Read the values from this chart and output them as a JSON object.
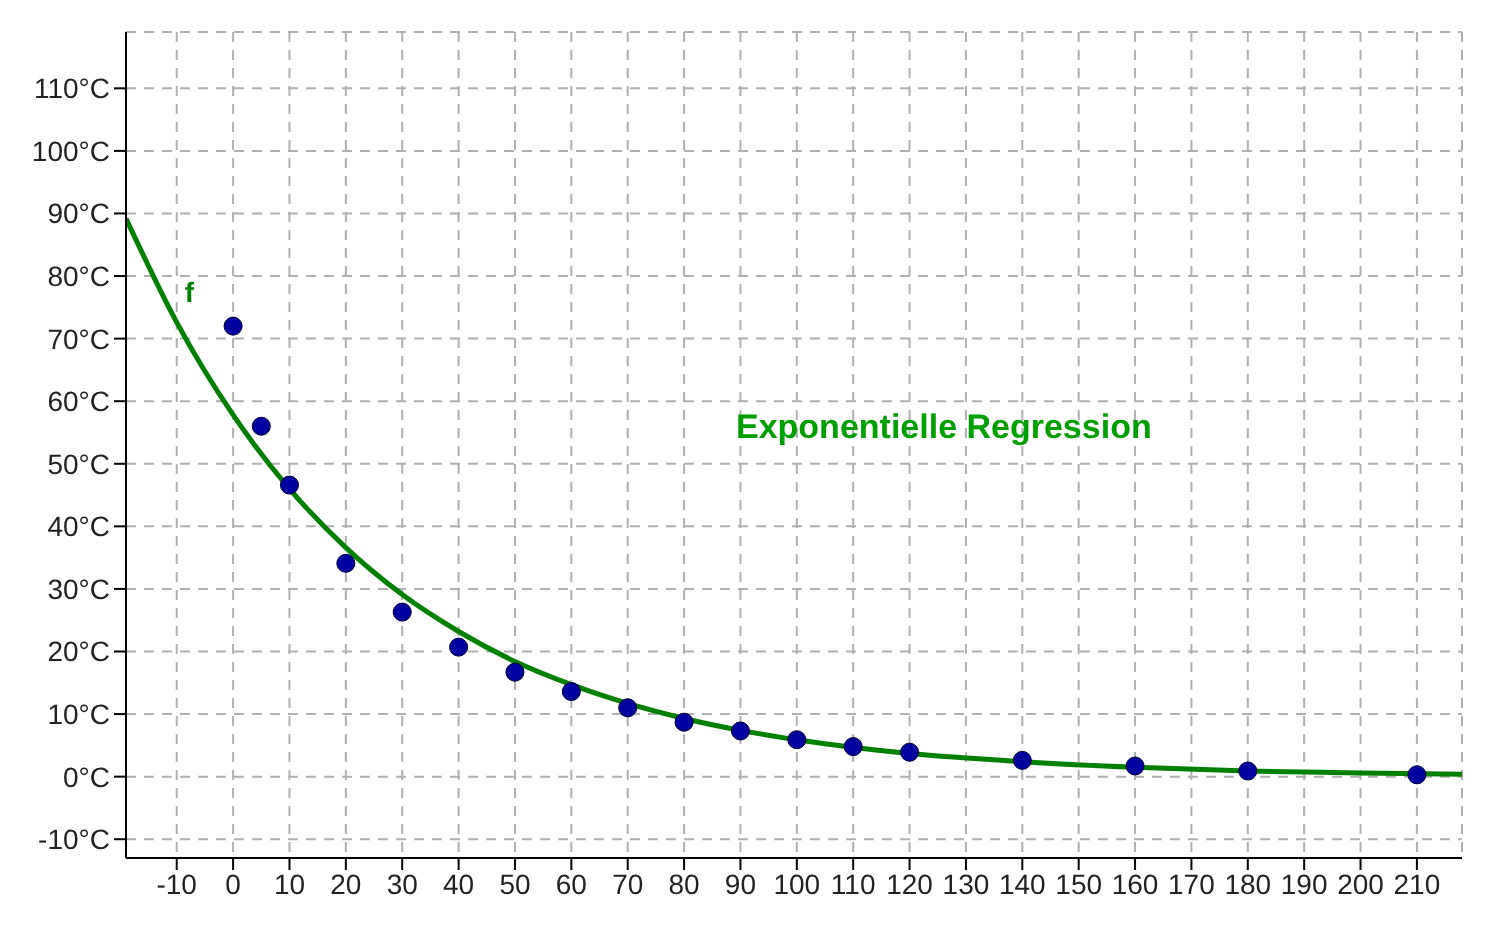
{
  "chart_data": {
    "type": "scatter",
    "annotations": [
      "Exponentielle Regression"
    ],
    "xlim": [
      -19,
      218
    ],
    "ylim": [
      -13,
      119
    ],
    "xticks": [
      -10,
      0,
      10,
      20,
      30,
      40,
      50,
      60,
      70,
      80,
      90,
      100,
      110,
      120,
      130,
      140,
      150,
      160,
      170,
      180,
      190,
      200,
      210
    ],
    "yticks": [
      {
        "value": -10,
        "label": "-10°C"
      },
      {
        "value": 0,
        "label": "0°C"
      },
      {
        "value": 10,
        "label": "10°C"
      },
      {
        "value": 20,
        "label": "20°C"
      },
      {
        "value": 30,
        "label": "30°C"
      },
      {
        "value": 40,
        "label": "40°C"
      },
      {
        "value": 50,
        "label": "50°C"
      },
      {
        "value": 60,
        "label": "60°C"
      },
      {
        "value": 70,
        "label": "70°C"
      },
      {
        "value": 80,
        "label": "80°C"
      },
      {
        "value": 90,
        "label": "90°C"
      },
      {
        "value": 100,
        "label": "100°C"
      },
      {
        "value": 110,
        "label": "110°C"
      }
    ],
    "grid": true,
    "legend": false,
    "series": [
      {
        "marker": "circle",
        "color": "#0000a0",
        "x": [
          0,
          5,
          10,
          20,
          30,
          40,
          50,
          60,
          70,
          80,
          90,
          100,
          110,
          120,
          140,
          160,
          180,
          210
        ],
        "values": [
          72,
          56,
          46.6,
          34.1,
          26.3,
          20.7,
          16.7,
          13.6,
          11,
          8.7,
          7.3,
          5.9,
          4.8,
          3.9,
          2.6,
          1.7,
          0.9,
          0.3
        ]
      },
      {
        "type": "line",
        "name": "f",
        "color": "#008000",
        "line_style": "solid",
        "marker": "none",
        "x": [
          -19,
          -10,
          0,
          10,
          20,
          30,
          40,
          50,
          60,
          70,
          80,
          90,
          100,
          120,
          140,
          160,
          180,
          200,
          218
        ],
        "values": [
          89.2,
          72.6,
          57.8,
          46,
          36.6,
          29.1,
          23.2,
          18.4,
          14.7,
          11.7,
          9.3,
          7.4,
          5.9,
          3.7,
          2.4,
          1.5,
          0.9,
          0.6,
          0.4
        ]
      }
    ]
  }
}
